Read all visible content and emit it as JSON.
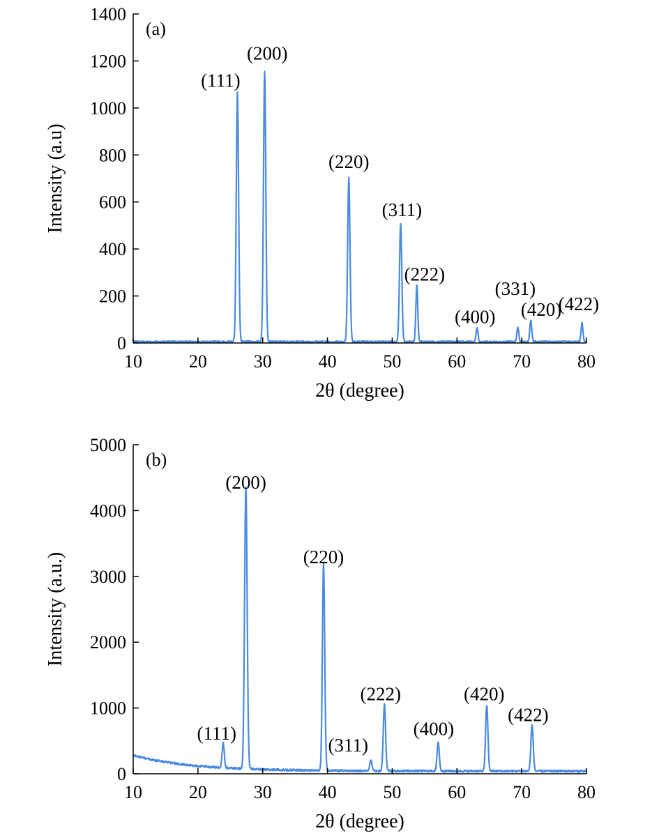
{
  "figure": {
    "line_color": "#4a8ae0",
    "axis_color": "#000000"
  },
  "chart_data": [
    {
      "type": "line",
      "panel_label": "(a)",
      "xlabel": "2θ (degree)",
      "ylabel": "Intensity (a.u)",
      "xlim": [
        10,
        80
      ],
      "ylim": [
        0,
        1400
      ],
      "xticks": [
        10,
        20,
        30,
        40,
        50,
        60,
        70,
        80
      ],
      "yticks": [
        0,
        200,
        400,
        600,
        800,
        1000,
        1200,
        1400
      ],
      "baseline": 5,
      "noise": 4,
      "peaks": [
        {
          "x": 26.1,
          "y": 1060,
          "w": 0.18
        },
        {
          "x": 30.3,
          "y": 1150,
          "w": 0.18
        },
        {
          "x": 43.3,
          "y": 700,
          "w": 0.18
        },
        {
          "x": 51.3,
          "y": 500,
          "w": 0.18
        },
        {
          "x": 53.8,
          "y": 240,
          "w": 0.15
        },
        {
          "x": 63.1,
          "y": 60,
          "w": 0.15
        },
        {
          "x": 69.4,
          "y": 60,
          "w": 0.15
        },
        {
          "x": 71.4,
          "y": 90,
          "w": 0.15
        },
        {
          "x": 79.3,
          "y": 80,
          "w": 0.15
        }
      ],
      "annotations": [
        {
          "text": "(111)",
          "x": 23.5,
          "y": 1090
        },
        {
          "text": "(200)",
          "x": 30.7,
          "y": 1205
        },
        {
          "text": "(220)",
          "x": 43.3,
          "y": 745
        },
        {
          "text": "(311)",
          "x": 51.5,
          "y": 540
        },
        {
          "text": "(222)",
          "x": 55.0,
          "y": 265
        },
        {
          "text": "(400)",
          "x": 62.8,
          "y": 85
        },
        {
          "text": "(331)",
          "x": 69.0,
          "y": 205
        },
        {
          "text": "(420)",
          "x": 73.0,
          "y": 115
        },
        {
          "text": "(422)",
          "x": 78.8,
          "y": 140
        }
      ]
    },
    {
      "type": "line",
      "panel_label": "(b)",
      "xlabel": "2θ (degree)",
      "ylabel": "Intensity (a.u.)",
      "xlim": [
        10,
        80
      ],
      "ylim": [
        0,
        5000
      ],
      "xticks": [
        10,
        20,
        30,
        40,
        50,
        60,
        70,
        80
      ],
      "yticks": [
        0,
        1000,
        2000,
        3000,
        4000,
        5000
      ],
      "baseline": 40,
      "background": {
        "amplitude": 240,
        "decay": 9
      },
      "noise": 15,
      "peaks": [
        {
          "x": 23.9,
          "y": 370,
          "w": 0.17
        },
        {
          "x": 27.4,
          "y": 4270,
          "w": 0.2
        },
        {
          "x": 39.4,
          "y": 3140,
          "w": 0.18
        },
        {
          "x": 46.7,
          "y": 170,
          "w": 0.17
        },
        {
          "x": 48.8,
          "y": 1010,
          "w": 0.18
        },
        {
          "x": 57.1,
          "y": 440,
          "w": 0.17
        },
        {
          "x": 64.6,
          "y": 1000,
          "w": 0.18
        },
        {
          "x": 71.6,
          "y": 700,
          "w": 0.18
        }
      ],
      "annotations": [
        {
          "text": "(111)",
          "x": 22.9,
          "y": 520
        },
        {
          "text": "(200)",
          "x": 27.4,
          "y": 4330
        },
        {
          "text": "(220)",
          "x": 39.4,
          "y": 3200
        },
        {
          "text": "(311)",
          "x": 43.2,
          "y": 340
        },
        {
          "text": "(222)",
          "x": 48.2,
          "y": 1120
        },
        {
          "text": "(400)",
          "x": 56.4,
          "y": 590
        },
        {
          "text": "(420)",
          "x": 64.2,
          "y": 1120
        },
        {
          "text": "(422)",
          "x": 71.0,
          "y": 800
        }
      ]
    }
  ]
}
